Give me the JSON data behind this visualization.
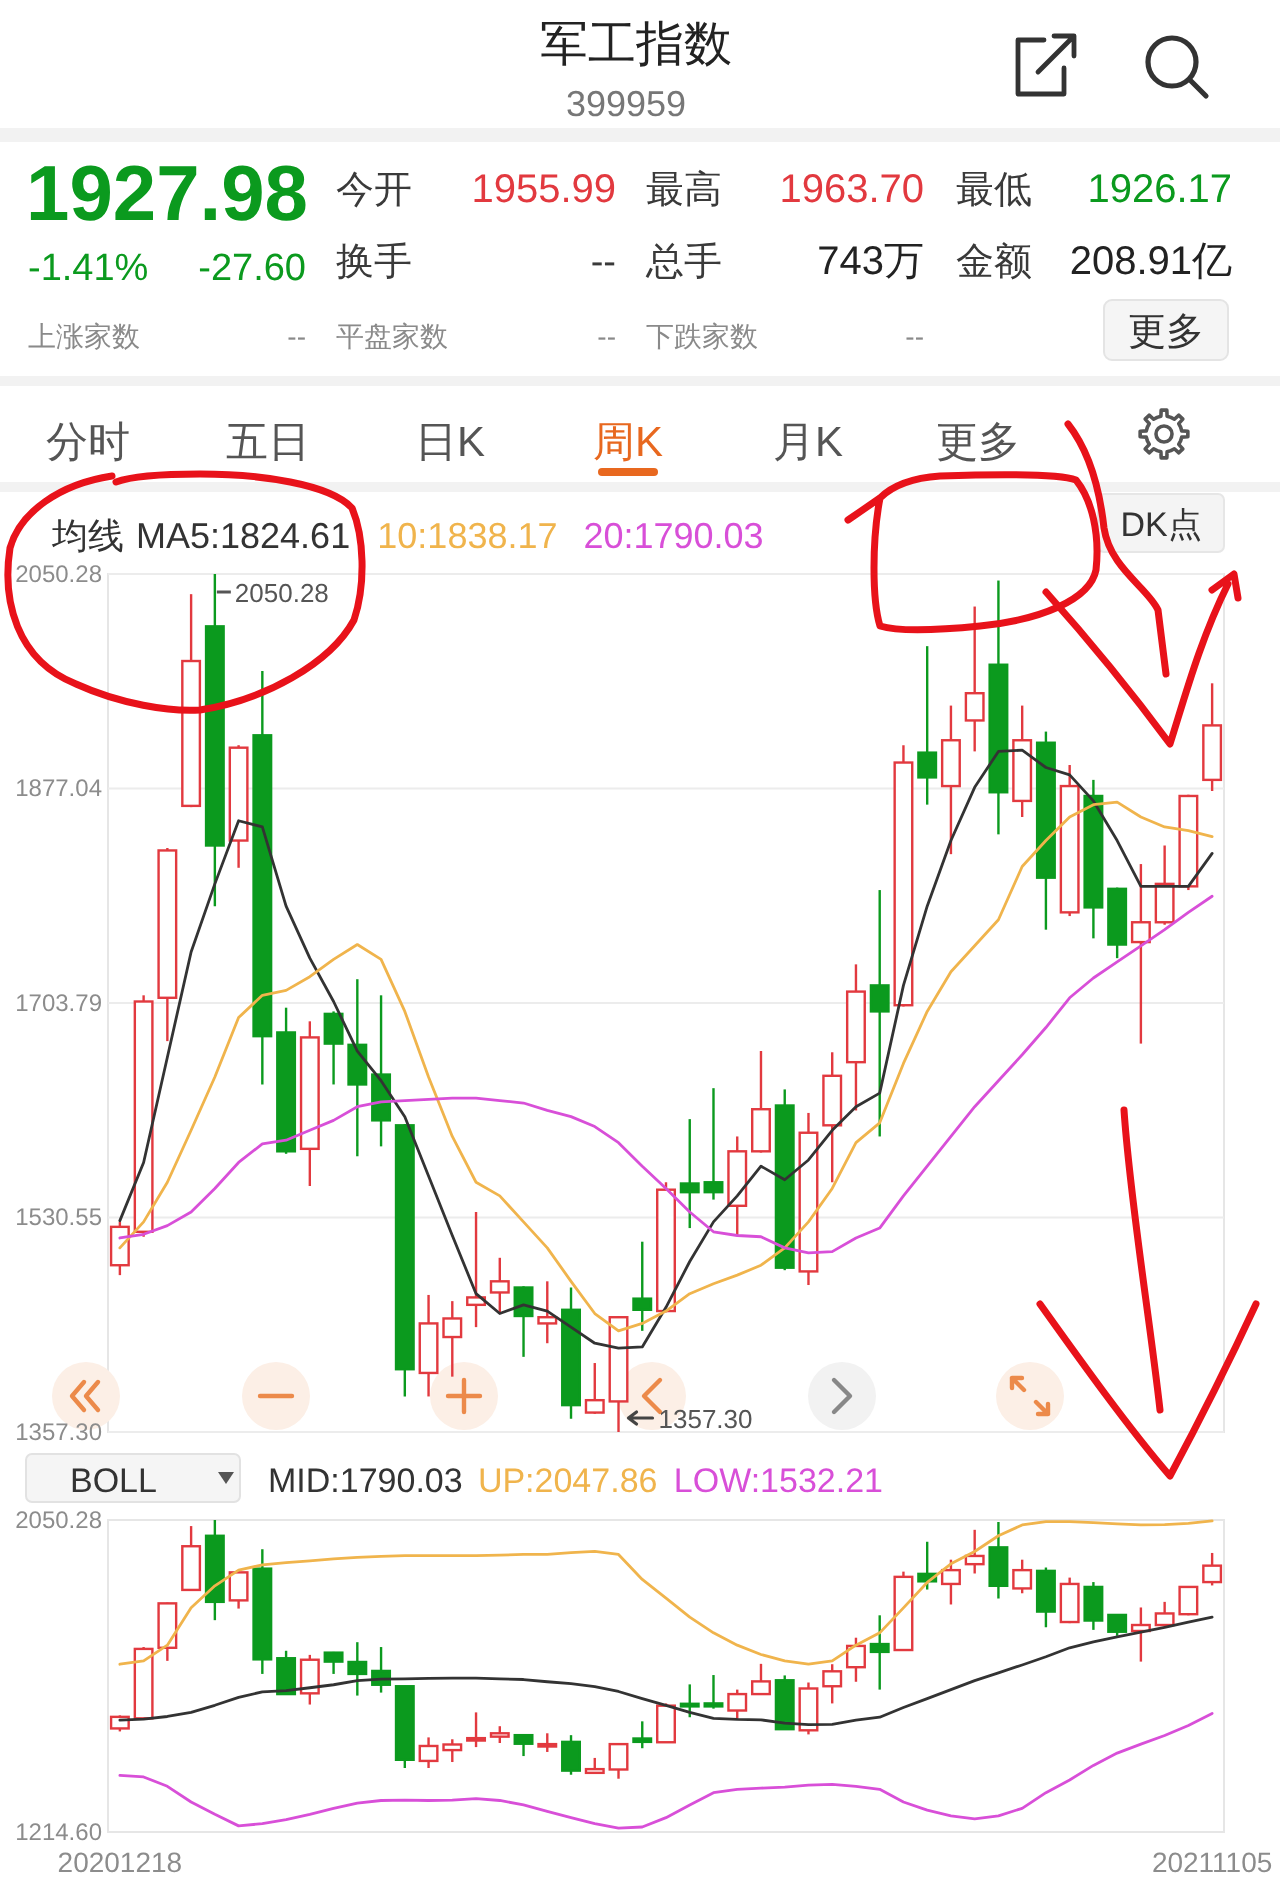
{
  "chart_data": [
    {
      "type": "other",
      "title": "军工指数",
      "subtitle": "399959",
      "annotations": [
        "1927.98",
        "-1.41%",
        "-27.60",
        "今开",
        "1955.99",
        "最高",
        "1963.70",
        "最低",
        "1926.17",
        "换手",
        "--",
        "总手",
        "743万",
        "金额",
        "208.91亿",
        "上涨家数",
        "--",
        "平盘家数",
        "--",
        "下跌家数",
        "--",
        "更多",
        "分时",
        "五日",
        "日K",
        "周K",
        "月K",
        "更多"
      ]
    },
    {
      "type": "candlestick",
      "legend_title": "均线",
      "legend": "top left",
      "grid": "y",
      "tick_labels": "y",
      "categories": [
        null,
        null,
        null,
        null,
        null,
        null,
        null,
        null,
        null,
        null,
        null,
        null,
        null,
        null,
        null,
        null,
        null,
        null,
        null,
        null,
        null,
        null,
        null,
        null,
        null,
        null,
        null,
        null,
        null,
        null,
        null,
        null,
        null,
        null,
        null,
        null,
        null,
        null,
        null,
        null,
        null,
        null,
        null,
        null,
        null,
        null,
        null
      ],
      "ylim": [
        1357.3,
        2050.28
      ],
      "yticks": [
        {
          "value": 1357.3,
          "label": "1357.30"
        },
        1530.55,
        1703.79,
        1877.04,
        2050.28
      ],
      "ohlc": [
        [
          1492,
          1527,
          1484,
          1523
        ],
        [
          1519,
          1710,
          1515,
          1705
        ],
        [
          1708,
          1829,
          1673,
          1827
        ],
        [
          1863,
          2034,
          1862,
          1980
        ],
        [
          2008,
          2050.28,
          1782,
          1831
        ],
        [
          1835,
          1912,
          1813,
          1910
        ],
        [
          1920,
          1972,
          1638,
          1677
        ],
        [
          1680,
          1700,
          1582,
          1584
        ],
        [
          1586,
          1689,
          1556,
          1676
        ],
        [
          1695,
          1697,
          1638,
          1671
        ],
        [
          1670,
          1723,
          1580,
          1638
        ],
        [
          1646,
          1710,
          1588,
          1609
        ],
        [
          1605,
          1606,
          1386,
          1408
        ],
        [
          1405,
          1468,
          1386,
          1445
        ],
        [
          1434,
          1463,
          1402,
          1449
        ],
        [
          1460,
          1535,
          1442,
          1466
        ],
        [
          1470,
          1498,
          1453,
          1479
        ],
        [
          1474,
          1475,
          1418,
          1451
        ],
        [
          1445,
          1479,
          1429,
          1450
        ],
        [
          1456,
          1474,
          1368,
          1379
        ],
        [
          1373,
          1413,
          1372,
          1383
        ],
        [
          1382,
          1451,
          1357.3,
          1450
        ],
        [
          1465,
          1511,
          1439,
          1456
        ],
        [
          1455,
          1559,
          1454,
          1553
        ],
        [
          1558,
          1610,
          1522,
          1551
        ],
        [
          1559,
          1635,
          1545,
          1551
        ],
        [
          1540,
          1596,
          1516,
          1584
        ],
        [
          1584,
          1665,
          1583,
          1618
        ],
        [
          1621,
          1634,
          1488,
          1490
        ],
        [
          1487,
          1615,
          1476,
          1599
        ],
        [
          1605,
          1664,
          1559,
          1645
        ],
        [
          1656,
          1735,
          1617,
          1713
        ],
        [
          1718,
          1795,
          1596,
          1697
        ],
        [
          1702,
          1912,
          1701,
          1898
        ],
        [
          1906,
          1992,
          1864,
          1886
        ],
        [
          1879,
          1944,
          1824,
          1916
        ],
        [
          1932,
          2024,
          1907,
          1954
        ],
        [
          1977,
          2045,
          1840,
          1874
        ],
        [
          1867,
          1944,
          1854,
          1916
        ],
        [
          1914,
          1923,
          1763,
          1805
        ],
        [
          1777,
          1896,
          1774,
          1879
        ],
        [
          1871,
          1884,
          1756,
          1781
        ],
        [
          1796,
          1797,
          1740,
          1751
        ],
        [
          1753,
          1816,
          1671,
          1769
        ],
        [
          1769,
          1831,
          1767,
          1800
        ],
        [
          1798,
          1872,
          1795,
          1871
        ],
        [
          1884,
          1962,
          1875,
          1928
        ]
      ],
      "series": [
        {
          "name": "MA5:1824.61",
          "type": "line",
          "color": "#333333",
          "values": [
            1528,
            1575,
            1660,
            1745,
            1800,
            1851,
            1846,
            1782,
            1740,
            1705,
            1665,
            1641,
            1612,
            1564,
            1516,
            1469,
            1453,
            1460,
            1455,
            1442,
            1429,
            1425,
            1426,
            1458,
            1495,
            1527,
            1548,
            1572,
            1561,
            1577,
            1601,
            1620,
            1631,
            1718,
            1782,
            1835,
            1878,
            1907,
            1908,
            1894,
            1888,
            1867,
            1835,
            1798,
            1798,
            1798,
            1824.61
          ]
        },
        {
          "name": "10:1838.17",
          "type": "line",
          "color": "#f0b44c",
          "values": [
            1506,
            1527,
            1559,
            1601,
            1644,
            1692,
            1710,
            1714,
            1725,
            1739,
            1751,
            1739,
            1697,
            1644,
            1596,
            1559,
            1548,
            1527,
            1506,
            1479,
            1453,
            1439,
            1445,
            1455,
            1469,
            1477,
            1484,
            1492,
            1506,
            1527,
            1554,
            1591,
            1607,
            1655,
            1697,
            1729,
            1750,
            1771,
            1814,
            1835,
            1854,
            1864,
            1866,
            1854,
            1846,
            1843,
            1838.17
          ]
        },
        {
          "name": "20:1790.03",
          "type": "line",
          "color": "#d84fd8",
          "values": [
            1514,
            1517,
            1524,
            1535,
            1554,
            1575,
            1590,
            1593,
            1601,
            1609,
            1620,
            1624,
            1625,
            1626,
            1627,
            1627,
            1625,
            1623,
            1617,
            1612,
            1604,
            1591,
            1572,
            1554,
            1535,
            1519,
            1516,
            1515,
            1506,
            1502,
            1503,
            1514,
            1522,
            1548,
            1572,
            1596,
            1620,
            1641,
            1662,
            1684,
            1708,
            1724,
            1737,
            1750,
            1763,
            1777,
            1790.03
          ]
        }
      ],
      "annotations": [
        "2050.28",
        "1357.30",
        "DK点"
      ]
    },
    {
      "type": "candlestick",
      "legend_title": "BOLL",
      "legend": "top left",
      "categories": [
        "20201218",
        null,
        null,
        null,
        null,
        null,
        null,
        null,
        null,
        null,
        null,
        null,
        null,
        null,
        null,
        null,
        null,
        null,
        null,
        null,
        null,
        null,
        null,
        null,
        null,
        null,
        null,
        null,
        null,
        null,
        null,
        null,
        null,
        null,
        null,
        null,
        null,
        null,
        null,
        null,
        null,
        null,
        null,
        null,
        null,
        null,
        "20211105"
      ],
      "ylim": [
        1214.6,
        2050.28
      ],
      "yticks": [
        {
          "value": 1214.6,
          "label": "1214.60"
        },
        2050.28
      ],
      "ohlc": [
        [
          1492,
          1527,
          1484,
          1523
        ],
        [
          1519,
          1710,
          1515,
          1705
        ],
        [
          1708,
          1829,
          1673,
          1827
        ],
        [
          1863,
          2034,
          1862,
          1980
        ],
        [
          2008,
          2050.28,
          1782,
          1831
        ],
        [
          1835,
          1912,
          1813,
          1910
        ],
        [
          1920,
          1972,
          1638,
          1677
        ],
        [
          1680,
          1700,
          1582,
          1584
        ],
        [
          1586,
          1689,
          1556,
          1676
        ],
        [
          1695,
          1697,
          1638,
          1671
        ],
        [
          1670,
          1723,
          1580,
          1638
        ],
        [
          1646,
          1710,
          1588,
          1609
        ],
        [
          1605,
          1606,
          1386,
          1408
        ],
        [
          1405,
          1468,
          1386,
          1445
        ],
        [
          1434,
          1463,
          1402,
          1449
        ],
        [
          1460,
          1535,
          1442,
          1466
        ],
        [
          1470,
          1498,
          1453,
          1479
        ],
        [
          1474,
          1475,
          1418,
          1451
        ],
        [
          1445,
          1479,
          1429,
          1450
        ],
        [
          1456,
          1474,
          1368,
          1379
        ],
        [
          1373,
          1413,
          1372,
          1383
        ],
        [
          1382,
          1451,
          1357.3,
          1450
        ],
        [
          1465,
          1511,
          1439,
          1456
        ],
        [
          1455,
          1559,
          1454,
          1553
        ],
        [
          1558,
          1610,
          1522,
          1551
        ],
        [
          1559,
          1635,
          1545,
          1551
        ],
        [
          1540,
          1596,
          1516,
          1584
        ],
        [
          1584,
          1665,
          1583,
          1618
        ],
        [
          1621,
          1634,
          1488,
          1490
        ],
        [
          1487,
          1615,
          1476,
          1599
        ],
        [
          1605,
          1664,
          1559,
          1645
        ],
        [
          1656,
          1735,
          1617,
          1713
        ],
        [
          1718,
          1795,
          1596,
          1697
        ],
        [
          1702,
          1912,
          1701,
          1898
        ],
        [
          1906,
          1992,
          1864,
          1886
        ],
        [
          1879,
          1944,
          1824,
          1916
        ],
        [
          1932,
          2024,
          1907,
          1954
        ],
        [
          1977,
          2045,
          1840,
          1874
        ],
        [
          1867,
          1944,
          1854,
          1916
        ],
        [
          1914,
          1923,
          1763,
          1805
        ],
        [
          1777,
          1896,
          1774,
          1879
        ],
        [
          1871,
          1884,
          1756,
          1781
        ],
        [
          1796,
          1797,
          1740,
          1751
        ],
        [
          1753,
          1816,
          1671,
          1769
        ],
        [
          1769,
          1831,
          1767,
          1800
        ],
        [
          1798,
          1872,
          1795,
          1871
        ],
        [
          1884,
          1962,
          1875,
          1928
        ]
      ],
      "series": [
        {
          "name": "MID:1790.03",
          "type": "line",
          "color": "#333333",
          "values": [
            1514,
            1517,
            1524,
            1535,
            1554,
            1575,
            1590,
            1593,
            1601,
            1609,
            1620,
            1624,
            1625,
            1626,
            1627,
            1627,
            1625,
            1623,
            1617,
            1612,
            1604,
            1591,
            1572,
            1554,
            1535,
            1519,
            1516,
            1515,
            1506,
            1502,
            1503,
            1514,
            1522,
            1548,
            1572,
            1596,
            1620,
            1641,
            1662,
            1684,
            1708,
            1724,
            1737,
            1750,
            1763,
            1777,
            1790.03
          ]
        },
        {
          "name": "UP:2047.86",
          "type": "line",
          "color": "#f0b44c",
          "values": [
            1664,
            1673,
            1715,
            1815,
            1874,
            1916,
            1930,
            1936,
            1941,
            1946,
            1950,
            1953,
            1955,
            1955,
            1955,
            1955,
            1956,
            1958,
            1958,
            1963,
            1966,
            1958,
            1891,
            1841,
            1790,
            1748,
            1715,
            1690,
            1673,
            1664,
            1673,
            1715,
            1748,
            1815,
            1883,
            1933,
            1966,
            2008,
            2037,
            2046,
            2046,
            2043,
            2040,
            2037,
            2038,
            2041,
            2047.86
          ]
        },
        {
          "name": "LOW:1532.21",
          "type": "line",
          "color": "#d84fd8",
          "values": [
            1366,
            1362,
            1337,
            1295,
            1262,
            1231,
            1237,
            1248,
            1262,
            1278,
            1292,
            1299,
            1300,
            1299,
            1300,
            1304,
            1299,
            1287,
            1270,
            1253,
            1237,
            1225,
            1228,
            1253,
            1287,
            1320,
            1329,
            1332,
            1335,
            1340,
            1342,
            1337,
            1329,
            1295,
            1273,
            1258,
            1250,
            1258,
            1278,
            1320,
            1354,
            1393,
            1426,
            1450,
            1473,
            1500,
            1532.21
          ]
        }
      ]
    }
  ]
}
